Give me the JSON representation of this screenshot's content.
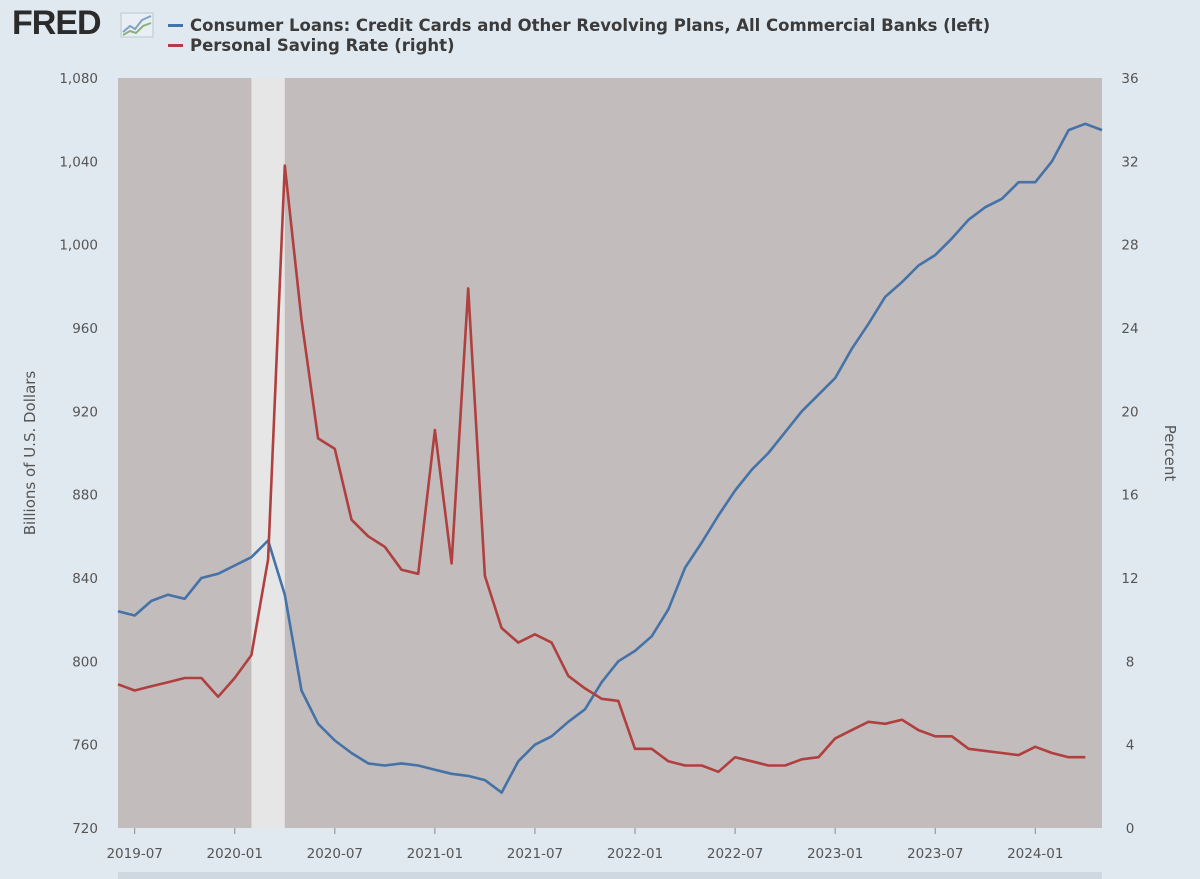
{
  "header": {
    "logo_text": "FRED",
    "logo_icon": "line-graph-icon"
  },
  "colors": {
    "background": "#e1e9f0",
    "plot_background": "#c3bcbc",
    "recession_band": "#e6e6e6",
    "series_left": "#4572a7",
    "series_right": "#b0403f"
  },
  "chart_data": {
    "type": "line",
    "dual_axis": true,
    "grid": false,
    "legend_position": "top-left",
    "recession_shading": {
      "start": "2020-02",
      "end": "2020-04"
    },
    "x_range": [
      "2019-06",
      "2024-05"
    ],
    "x_ticks": [
      "2019-07",
      "2020-01",
      "2020-07",
      "2021-01",
      "2021-07",
      "2022-01",
      "2022-07",
      "2023-01",
      "2023-07",
      "2024-01"
    ],
    "y_left": {
      "label": "Billions of U.S. Dollars",
      "range": [
        720,
        1080
      ],
      "ticks": [
        "720",
        "760",
        "800",
        "840",
        "880",
        "920",
        "960",
        "1,000",
        "1,040",
        "1,080"
      ]
    },
    "y_right": {
      "label": "Percent",
      "range": [
        0,
        36
      ],
      "ticks": [
        "0",
        "4",
        "8",
        "12",
        "16",
        "20",
        "24",
        "28",
        "32",
        "36"
      ]
    },
    "series": [
      {
        "name": "Consumer Loans: Credit Cards and Other Revolving Plans, All Commercial Banks (left)",
        "axis": "left",
        "color": "#4572a7",
        "points": [
          [
            "2019-06",
            824
          ],
          [
            "2019-07",
            822
          ],
          [
            "2019-08",
            829
          ],
          [
            "2019-09",
            832
          ],
          [
            "2019-10",
            830
          ],
          [
            "2019-11",
            840
          ],
          [
            "2019-12",
            842
          ],
          [
            "2020-01",
            846
          ],
          [
            "2020-02",
            850
          ],
          [
            "2020-03",
            858
          ],
          [
            "2020-04",
            832
          ],
          [
            "2020-05",
            786
          ],
          [
            "2020-06",
            770
          ],
          [
            "2020-07",
            762
          ],
          [
            "2020-08",
            756
          ],
          [
            "2020-09",
            751
          ],
          [
            "2020-10",
            750
          ],
          [
            "2020-11",
            751
          ],
          [
            "2020-12",
            750
          ],
          [
            "2021-01",
            748
          ],
          [
            "2021-02",
            746
          ],
          [
            "2021-03",
            745
          ],
          [
            "2021-04",
            743
          ],
          [
            "2021-05",
            737
          ],
          [
            "2021-06",
            752
          ],
          [
            "2021-07",
            760
          ],
          [
            "2021-08",
            764
          ],
          [
            "2021-09",
            771
          ],
          [
            "2021-10",
            777
          ],
          [
            "2021-11",
            790
          ],
          [
            "2021-12",
            800
          ],
          [
            "2022-01",
            805
          ],
          [
            "2022-02",
            812
          ],
          [
            "2022-03",
            825
          ],
          [
            "2022-04",
            845
          ],
          [
            "2022-05",
            857
          ],
          [
            "2022-06",
            870
          ],
          [
            "2022-07",
            882
          ],
          [
            "2022-08",
            892
          ],
          [
            "2022-09",
            900
          ],
          [
            "2022-10",
            910
          ],
          [
            "2022-11",
            920
          ],
          [
            "2022-12",
            928
          ],
          [
            "2023-01",
            936
          ],
          [
            "2023-02",
            950
          ],
          [
            "2023-03",
            962
          ],
          [
            "2023-04",
            975
          ],
          [
            "2023-05",
            982
          ],
          [
            "2023-06",
            990
          ],
          [
            "2023-07",
            995
          ],
          [
            "2023-08",
            1003
          ],
          [
            "2023-09",
            1012
          ],
          [
            "2023-10",
            1018
          ],
          [
            "2023-11",
            1022
          ],
          [
            "2023-12",
            1030
          ],
          [
            "2024-01",
            1030
          ],
          [
            "2024-02",
            1040
          ],
          [
            "2024-03",
            1055
          ],
          [
            "2024-04",
            1058
          ],
          [
            "2024-05",
            1055
          ]
        ]
      },
      {
        "name": "Personal Saving Rate (right)",
        "axis": "right",
        "color": "#b0403f",
        "points": [
          [
            "2019-06",
            6.9
          ],
          [
            "2019-07",
            6.6
          ],
          [
            "2019-08",
            6.8
          ],
          [
            "2019-09",
            7.0
          ],
          [
            "2019-10",
            7.2
          ],
          [
            "2019-11",
            7.2
          ],
          [
            "2019-12",
            6.3
          ],
          [
            "2020-01",
            7.2
          ],
          [
            "2020-02",
            8.3
          ],
          [
            "2020-03",
            12.9
          ],
          [
            "2020-04",
            31.8
          ],
          [
            "2020-05",
            24.4
          ],
          [
            "2020-06",
            18.7
          ],
          [
            "2020-07",
            18.2
          ],
          [
            "2020-08",
            14.8
          ],
          [
            "2020-09",
            14.0
          ],
          [
            "2020-10",
            13.5
          ],
          [
            "2020-11",
            12.4
          ],
          [
            "2020-12",
            12.2
          ],
          [
            "2021-01",
            19.1
          ],
          [
            "2021-02",
            12.7
          ],
          [
            "2021-03",
            25.9
          ],
          [
            "2021-04",
            12.1
          ],
          [
            "2021-05",
            9.6
          ],
          [
            "2021-06",
            8.9
          ],
          [
            "2021-07",
            9.3
          ],
          [
            "2021-08",
            8.9
          ],
          [
            "2021-09",
            7.3
          ],
          [
            "2021-10",
            6.7
          ],
          [
            "2021-11",
            6.2
          ],
          [
            "2021-12",
            6.1
          ],
          [
            "2022-01",
            3.8
          ],
          [
            "2022-02",
            3.8
          ],
          [
            "2022-03",
            3.2
          ],
          [
            "2022-04",
            3.0
          ],
          [
            "2022-05",
            3.0
          ],
          [
            "2022-06",
            2.7
          ],
          [
            "2022-07",
            3.4
          ],
          [
            "2022-08",
            3.2
          ],
          [
            "2022-09",
            3.0
          ],
          [
            "2022-10",
            3.0
          ],
          [
            "2022-11",
            3.3
          ],
          [
            "2022-12",
            3.4
          ],
          [
            "2023-01",
            4.3
          ],
          [
            "2023-02",
            4.7
          ],
          [
            "2023-03",
            5.1
          ],
          [
            "2023-04",
            5.0
          ],
          [
            "2023-05",
            5.2
          ],
          [
            "2023-06",
            4.7
          ],
          [
            "2023-07",
            4.4
          ],
          [
            "2023-08",
            4.4
          ],
          [
            "2023-09",
            3.8
          ],
          [
            "2023-10",
            3.7
          ],
          [
            "2023-11",
            3.6
          ],
          [
            "2023-12",
            3.5
          ],
          [
            "2024-01",
            3.9
          ],
          [
            "2024-02",
            3.6
          ],
          [
            "2024-03",
            3.4
          ],
          [
            "2024-04",
            3.4
          ]
        ]
      }
    ]
  }
}
